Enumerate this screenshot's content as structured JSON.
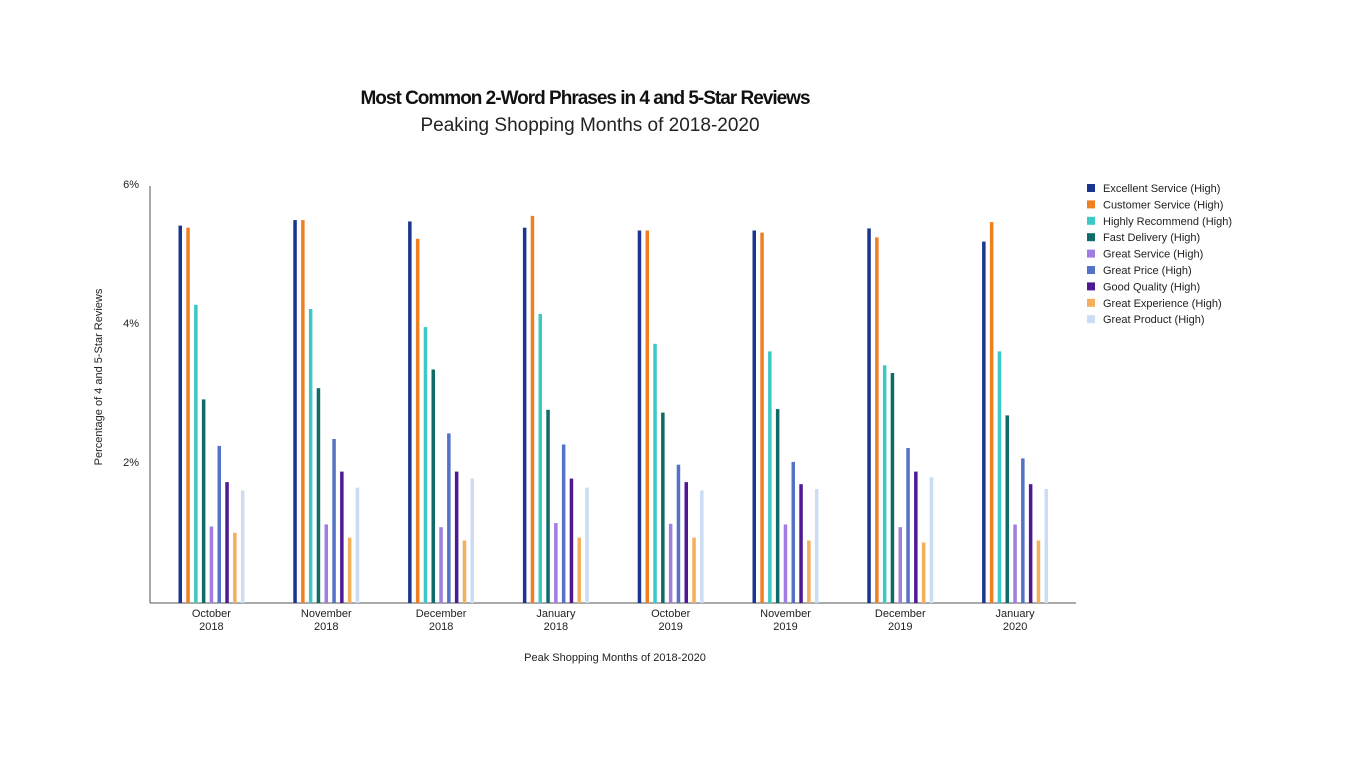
{
  "chart_data": {
    "type": "bar",
    "title": "Most Common 2-Word Phrases in 4 and 5-Star Reviews",
    "subtitle": "Peaking Shopping Months of 2018-2020",
    "xlabel": "Peak Shopping Months of 2018-2020",
    "ylabel": "Percentage of 4 and 5-Star Reviews",
    "ylim": [
      0,
      6
    ],
    "yticks": [
      {
        "value": 2,
        "label": "2%"
      },
      {
        "value": 4,
        "label": "4%"
      },
      {
        "value": 6,
        "label": "6%"
      }
    ],
    "categories": [
      {
        "line1": "October",
        "line2": "2018"
      },
      {
        "line1": "November",
        "line2": "2018"
      },
      {
        "line1": "December",
        "line2": "2018"
      },
      {
        "line1": "January",
        "line2": "2018"
      },
      {
        "line1": "October",
        "line2": "2019"
      },
      {
        "line1": "November",
        "line2": "2019"
      },
      {
        "line1": "December",
        "line2": "2019"
      },
      {
        "line1": "January",
        "line2": "2020"
      }
    ],
    "legend_position": "right",
    "grid": false,
    "series": [
      {
        "name": "Excellent Service (High)",
        "color": "#1a3590",
        "values": [
          5.43,
          5.51,
          5.49,
          5.4,
          5.36,
          5.36,
          5.39,
          5.2
        ]
      },
      {
        "name": "Customer Service (High)",
        "color": "#f07f22",
        "values": [
          5.4,
          5.51,
          5.24,
          5.57,
          5.36,
          5.33,
          5.26,
          5.48
        ]
      },
      {
        "name": "Highly Recommend (High)",
        "color": "#3cc8c4",
        "values": [
          4.29,
          4.23,
          3.97,
          4.16,
          3.73,
          3.62,
          3.42,
          3.62
        ]
      },
      {
        "name": "Fast Delivery (High)",
        "color": "#0e6b68",
        "values": [
          2.93,
          3.09,
          3.36,
          2.78,
          2.74,
          2.79,
          3.31,
          2.7
        ]
      },
      {
        "name": "Great Service (High)",
        "color": "#a07de0",
        "values": [
          1.1,
          1.13,
          1.09,
          1.15,
          1.14,
          1.13,
          1.09,
          1.13
        ]
      },
      {
        "name": "Great Price (High)",
        "color": "#5472c6",
        "values": [
          2.26,
          2.36,
          2.44,
          2.28,
          1.99,
          2.03,
          2.23,
          2.08
        ]
      },
      {
        "name": "Good Quality (High)",
        "color": "#4e1a93",
        "values": [
          1.74,
          1.89,
          1.89,
          1.79,
          1.74,
          1.71,
          1.89,
          1.71
        ]
      },
      {
        "name": "Great Experience (High)",
        "color": "#f5ae5c",
        "values": [
          1.01,
          0.94,
          0.9,
          0.94,
          0.94,
          0.9,
          0.87,
          0.9
        ]
      },
      {
        "name": "Great Product (High)",
        "color": "#cbdcf5",
        "values": [
          1.62,
          1.66,
          1.79,
          1.66,
          1.62,
          1.64,
          1.81,
          1.64
        ]
      }
    ]
  }
}
